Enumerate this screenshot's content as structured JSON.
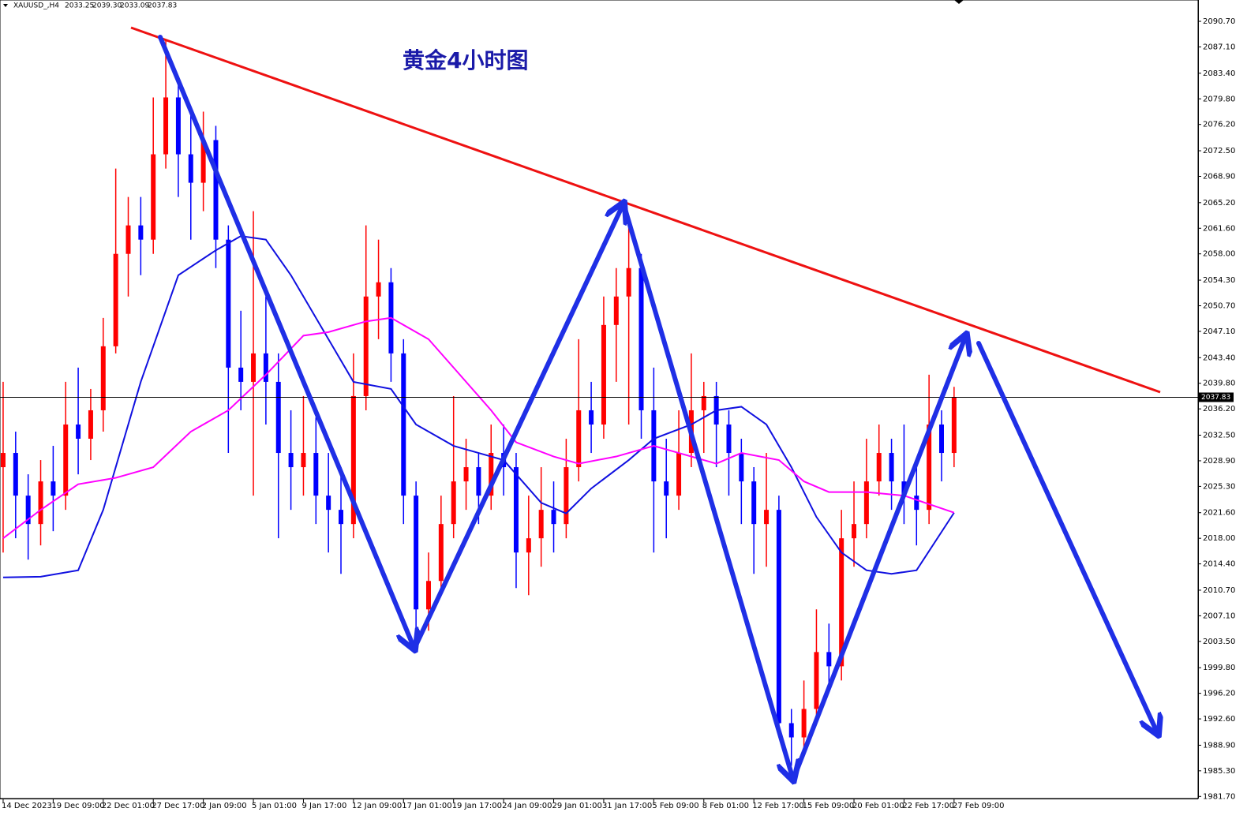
{
  "chart_data": {
    "type": "candlestick",
    "title": "黄金4小时图",
    "header": {
      "symbol": "XAUUSD_,H4",
      "ohlc": [
        "2033.25",
        "2039.30",
        "2033.09",
        "2037.83"
      ]
    },
    "last": {
      "value": 2037.83,
      "label": "2037.83"
    },
    "colors": {
      "up": "#ff0000",
      "down": "#0000ff"
    },
    "xlim": [
      -1,
      382
    ],
    "ylim": [
      1981.4,
      2093.7
    ],
    "xticks": [
      {
        "value": 0,
        "label": "14 Dec 2023"
      },
      {
        "value": 16,
        "label": "19 Dec 09:00"
      },
      {
        "value": 32,
        "label": "22 Dec 01:00"
      },
      {
        "value": 48,
        "label": "27 Dec 17:00"
      },
      {
        "value": 64,
        "label": "2 Jan 09:00"
      },
      {
        "value": 80,
        "label": "5 Jan 01:00"
      },
      {
        "value": 96,
        "label": "9 Jan 17:00"
      },
      {
        "value": 112,
        "label": "12 Jan 09:00"
      },
      {
        "value": 128,
        "label": "17 Jan 01:00"
      },
      {
        "value": 144,
        "label": "19 Jan 17:00"
      },
      {
        "value": 160,
        "label": "24 Jan 09:00"
      },
      {
        "value": 176,
        "label": "29 Jan 01:00"
      },
      {
        "value": 192,
        "label": "31 Jan 17:00"
      },
      {
        "value": 208,
        "label": "5 Feb 09:00"
      },
      {
        "value": 224,
        "label": "8 Feb 01:00"
      },
      {
        "value": 240,
        "label": "12 Feb 17:00"
      },
      {
        "value": 256,
        "label": "15 Feb 09:00"
      },
      {
        "value": 272,
        "label": "20 Feb 01:00"
      },
      {
        "value": 288,
        "label": "22 Feb 17:00"
      },
      {
        "value": 304,
        "label": "27 Feb 09:00"
      }
    ],
    "yticks": [
      {
        "value": 2090.7,
        "label": "2090.70"
      },
      {
        "value": 2087.1,
        "label": "2087.10"
      },
      {
        "value": 2083.4,
        "label": "2083.40"
      },
      {
        "value": 2079.8,
        "label": "2079.80"
      },
      {
        "value": 2076.2,
        "label": "2076.20"
      },
      {
        "value": 2072.5,
        "label": "2072.50"
      },
      {
        "value": 2068.9,
        "label": "2068.90"
      },
      {
        "value": 2065.2,
        "label": "2065.20"
      },
      {
        "value": 2061.6,
        "label": "2061.60"
      },
      {
        "value": 2058,
        "label": "2058.00"
      },
      {
        "value": 2054.3,
        "label": "2054.30"
      },
      {
        "value": 2050.7,
        "label": "2050.70"
      },
      {
        "value": 2047.1,
        "label": "2047.10"
      },
      {
        "value": 2043.4,
        "label": "2043.40"
      },
      {
        "value": 2039.8,
        "label": "2039.80"
      },
      {
        "value": 2036.2,
        "label": "2036.20"
      },
      {
        "value": 2032.5,
        "label": "2032.50"
      },
      {
        "value": 2028.9,
        "label": "2028.90"
      },
      {
        "value": 2025.3,
        "label": "2025.30"
      },
      {
        "value": 2021.6,
        "label": "2021.60"
      },
      {
        "value": 2018,
        "label": "2018.00"
      },
      {
        "value": 2014.4,
        "label": "2014.40"
      },
      {
        "value": 2010.7,
        "label": "2010.70"
      },
      {
        "value": 2007.1,
        "label": "2007.10"
      },
      {
        "value": 2003.5,
        "label": "2003.50"
      },
      {
        "value": 1999.8,
        "label": "1999.80"
      },
      {
        "value": 1996.2,
        "label": "1996.20"
      },
      {
        "value": 1992.6,
        "label": "1992.60"
      },
      {
        "value": 1988.9,
        "label": "1988.90"
      },
      {
        "value": 1985.3,
        "label": "1985.30"
      },
      {
        "value": 1981.7,
        "label": "1981.70"
      }
    ],
    "x": [
      0,
      4,
      8,
      12,
      16,
      20,
      24,
      28,
      32,
      36,
      40,
      44,
      48,
      52,
      56,
      60,
      64,
      68,
      72,
      76,
      80,
      84,
      88,
      92,
      96,
      100,
      104,
      108,
      112,
      116,
      120,
      124,
      128,
      132,
      136,
      140,
      144,
      148,
      152,
      156,
      160,
      164,
      168,
      172,
      176,
      180,
      184,
      188,
      192,
      196,
      200,
      204,
      208,
      212,
      216,
      220,
      224,
      228,
      232,
      236,
      240,
      244,
      248,
      252,
      256,
      260,
      264,
      268,
      272,
      276,
      280,
      284,
      288,
      292,
      296,
      300,
      304
    ],
    "open": [
      2028,
      2030,
      2024,
      2020,
      2026,
      2024,
      2034,
      2032,
      2036,
      2045,
      2058,
      2062,
      2060,
      2072,
      2080,
      2072,
      2068,
      2074,
      2060,
      2042,
      2040,
      2044,
      2040,
      2030,
      2028,
      2030,
      2024,
      2022,
      2020,
      2038,
      2052,
      2054,
      2044,
      2024,
      2008,
      2012,
      2020,
      2026,
      2028,
      2024,
      2030,
      2028,
      2016,
      2018,
      2022,
      2020,
      2028,
      2036,
      2034,
      2048,
      2052,
      2056,
      2036,
      2026,
      2024,
      2030,
      2036,
      2038,
      2034,
      2030,
      2026,
      2020,
      2022,
      1992,
      1990,
      1994,
      2002,
      2000,
      2018,
      2020,
      2026,
      2030,
      2026,
      2024,
      2022,
      2034,
      2030
    ],
    "high": [
      2040,
      2033,
      2027,
      2029,
      2031,
      2040,
      2042,
      2039,
      2049,
      2070,
      2066,
      2066,
      2080,
      2088,
      2082,
      2078,
      2078,
      2076,
      2062,
      2050,
      2064,
      2052,
      2044,
      2036,
      2038,
      2035,
      2030,
      2028,
      2044,
      2062,
      2060,
      2056,
      2046,
      2026,
      2016,
      2024,
      2038,
      2032,
      2030,
      2034,
      2034,
      2030,
      2024,
      2028,
      2026,
      2032,
      2046,
      2040,
      2052,
      2056,
      2062,
      2058,
      2042,
      2032,
      2036,
      2044,
      2040,
      2040,
      2036,
      2032,
      2028,
      2030,
      2024,
      1994,
      1998,
      2008,
      2006,
      2022,
      2026,
      2032,
      2034,
      2032,
      2034,
      2028,
      2041,
      2036,
      2039.3
    ],
    "low": [
      2016,
      2018,
      2015,
      2017,
      2019,
      2022,
      2027,
      2029,
      2033,
      2044,
      2052,
      2055,
      2058,
      2070,
      2066,
      2060,
      2064,
      2056,
      2030,
      2036,
      2024,
      2034,
      2018,
      2022,
      2024,
      2020,
      2016,
      2013,
      2018,
      2036,
      2046,
      2040,
      2020,
      2003,
      2005,
      2010,
      2018,
      2022,
      2020,
      2022,
      2024,
      2011,
      2010,
      2014,
      2016,
      2018,
      2026,
      2030,
      2032,
      2040,
      2034,
      2032,
      2016,
      2018,
      2022,
      2028,
      2030,
      2028,
      2024,
      2020,
      2013,
      2014,
      1990,
      1986,
      1988,
      1992,
      1997,
      1998,
      2014,
      2018,
      2024,
      2022,
      2020,
      2017,
      2020,
      2026,
      2028
    ],
    "close": [
      2030,
      2024,
      2020,
      2026,
      2024,
      2034,
      2032,
      2036,
      2045,
      2058,
      2062,
      2060,
      2072,
      2080,
      2072,
      2068,
      2074,
      2060,
      2042,
      2040,
      2044,
      2040,
      2030,
      2028,
      2030,
      2024,
      2022,
      2020,
      2038,
      2052,
      2054,
      2044,
      2024,
      2008,
      2012,
      2020,
      2026,
      2028,
      2024,
      2030,
      2028,
      2016,
      2018,
      2022,
      2020,
      2028,
      2036,
      2034,
      2048,
      2052,
      2056,
      2036,
      2026,
      2024,
      2030,
      2036,
      2038,
      2034,
      2030,
      2026,
      2020,
      2022,
      1992,
      1990,
      1994,
      2002,
      2000,
      2018,
      2020,
      2026,
      2030,
      2026,
      2024,
      2022,
      2034,
      2030,
      2037.83
    ],
    "overlays": [
      {
        "color": "#1010e0",
        "x": [
          0,
          12,
          24,
          32,
          44,
          56,
          68,
          76,
          84,
          92,
          104,
          112,
          124,
          132,
          144,
          152,
          160,
          172,
          180,
          188,
          200,
          208,
          220,
          228,
          236,
          244,
          252,
          260,
          268,
          276,
          284,
          292,
          304
        ],
        "values": [
          2012.5,
          2012.6,
          2013.5,
          2022,
          2040,
          2055,
          2058.5,
          2060.5,
          2060,
          2055,
          2046,
          2040,
          2039,
          2034,
          2031,
          2030,
          2029,
          2023,
          2021.5,
          2025,
          2029,
          2032,
          2034,
          2036,
          2036.5,
          2034,
          2028,
          2021,
          2016,
          2013.5,
          2013,
          2013.5,
          2021.6
        ]
      },
      {
        "color": "#ff00ff",
        "x": [
          0,
          12,
          24,
          36,
          48,
          60,
          72,
          84,
          96,
          104,
          116,
          124,
          136,
          144,
          156,
          164,
          176,
          184,
          196,
          208,
          216,
          228,
          236,
          248,
          256,
          264,
          276,
          288,
          304
        ],
        "values": [
          2018,
          2022,
          2025.6,
          2026.5,
          2028,
          2033,
          2036,
          2041,
          2046.5,
          2047,
          2048.5,
          2049,
          2046,
          2042,
          2036,
          2031.5,
          2029.5,
          2028.5,
          2029.5,
          2031,
          2030,
          2028.5,
          2030,
          2029,
          2026,
          2024.5,
          2024.5,
          2024,
          2021.6
        ]
      }
    ]
  }
}
